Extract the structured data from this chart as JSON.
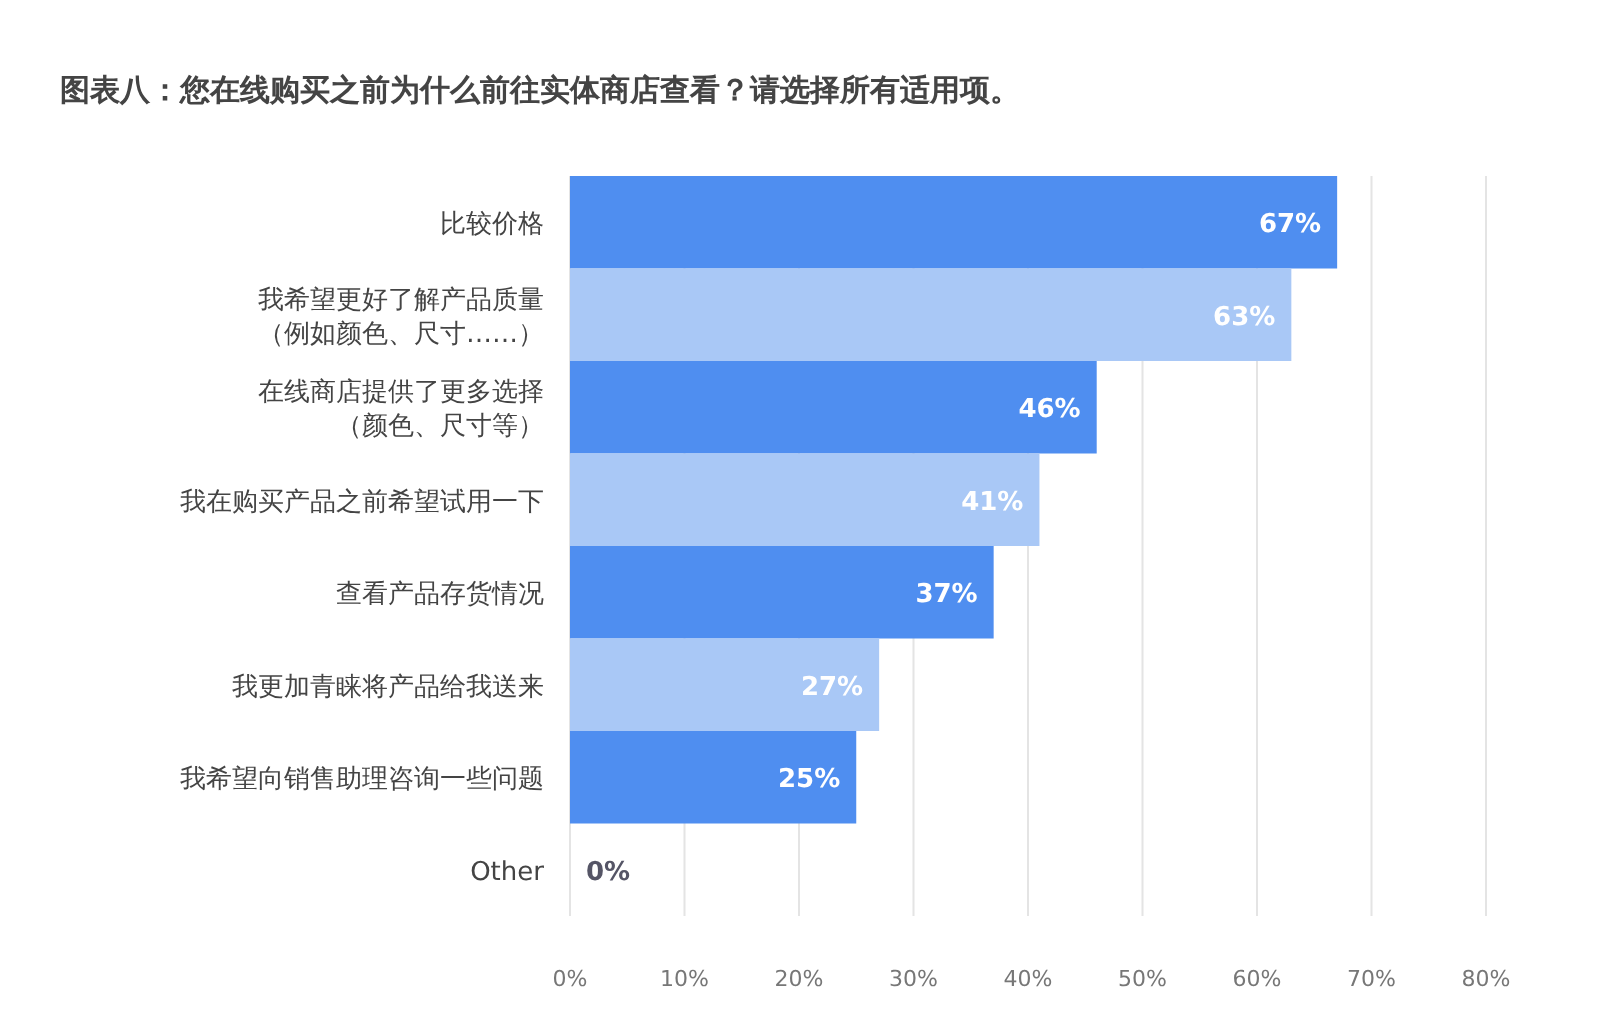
{
  "chart_data": {
    "type": "bar",
    "orientation": "horizontal",
    "title": "图表八：您在线购买之前为什么前往实体商店查看？请选择所有适用项。",
    "categories": [
      "比较价格",
      "我希望更好了解产品质量（例如颜色、尺寸……）",
      "在线商店提供了更多选择（颜色、尺寸等）",
      "我在购买产品之前希望试用一下",
      "查看产品存货情况",
      "我更加青睐将产品给我送来",
      "我希望向销售助理咨询一些问题",
      "Other"
    ],
    "values": [
      67,
      63,
      46,
      41,
      37,
      27,
      25,
      0
    ],
    "colors": [
      "#4f8ef0",
      "#a9c8f6",
      "#4f8ef0",
      "#a9c8f6",
      "#4f8ef0",
      "#a9c8f6",
      "#4f8ef0",
      "#4f8ef0"
    ],
    "value_labels": [
      "67%",
      "63%",
      "46%",
      "41%",
      "37%",
      "27%",
      "25%",
      "0%"
    ],
    "xlim": [
      0,
      80
    ],
    "xticks": [
      {
        "value": 0,
        "label": "0%"
      },
      {
        "value": 10,
        "label": "10%"
      },
      {
        "value": 20,
        "label": "20%"
      },
      {
        "value": 30,
        "label": "30%"
      },
      {
        "value": 40,
        "label": "40%"
      },
      {
        "value": 50,
        "label": "50%"
      },
      {
        "value": 60,
        "label": "60%"
      },
      {
        "value": 70,
        "label": "70%"
      },
      {
        "value": 80,
        "label": "80%"
      }
    ],
    "grid": "x"
  }
}
